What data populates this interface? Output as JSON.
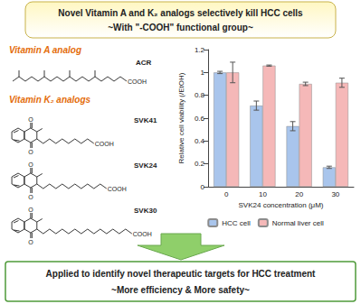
{
  "header": {
    "title": "Novel Vitamin A and K₂ analogs selectively kill HCC cells",
    "subtitle": "~With \"-COOH\" functional group~"
  },
  "structures": {
    "vitamin_a": {
      "heading": "Vitamin A analog",
      "compounds": [
        {
          "label": "ACR",
          "group": "COOH"
        }
      ]
    },
    "vitamin_k2": {
      "heading": "Vitamin K₂ analogs",
      "compounds": [
        {
          "label": "SVK41",
          "group": "COOH",
          "atom": "O"
        },
        {
          "label": "SVK24",
          "group": "COOH",
          "atom": "O"
        },
        {
          "label": "SVK30",
          "group": "COOH",
          "atom": "O"
        }
      ]
    }
  },
  "chart_data": {
    "type": "bar",
    "categories": [
      "0",
      "10",
      "20",
      "30"
    ],
    "x_label": "SVK24 concentration (μM)",
    "y_label": "Relative cell viability (/EtOH)",
    "series": [
      {
        "name": "HCC cell",
        "color": "#a9c5ec",
        "values": [
          1.0,
          0.71,
          0.53,
          0.17
        ],
        "errors": [
          0.01,
          0.04,
          0.04,
          0.01
        ]
      },
      {
        "name": "Normal liver cell",
        "color": "#f5b8b8",
        "values": [
          1.0,
          1.06,
          0.9,
          0.91
        ],
        "errors": [
          0.09,
          0.005,
          0.015,
          0.04
        ]
      }
    ],
    "ylim": [
      0,
      1.2
    ],
    "yticks": [
      0,
      0.2,
      0.4,
      0.6,
      0.8,
      1,
      1.2
    ],
    "grid": false,
    "legend": "bottom"
  },
  "footer": {
    "title": "Applied to identify novel therapeutic targets for HCC treatment",
    "subtitle": "~More efficiency & More safety~"
  }
}
